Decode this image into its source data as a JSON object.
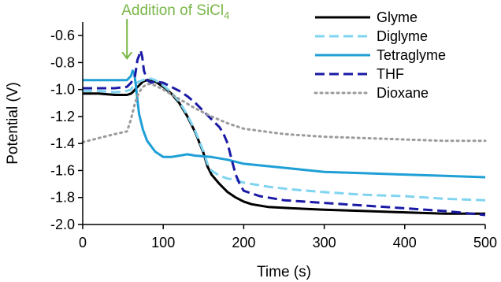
{
  "chart_data": {
    "type": "line",
    "xlabel": "Time (s)",
    "ylabel": "Potential (V)",
    "xlim": [
      0,
      500
    ],
    "ylim": [
      -2.0,
      -0.5
    ],
    "x_ticks": [
      "0",
      "100",
      "200",
      "300",
      "400",
      "500"
    ],
    "x_tick_values": [
      0,
      100,
      200,
      300,
      400,
      500
    ],
    "y_ticks": [
      "-0.6",
      "-0.8",
      "-1.0",
      "-1.2",
      "-1.4",
      "-1.6",
      "-1.8",
      "-2.0"
    ],
    "y_tick_values": [
      -0.6,
      -0.8,
      -1.0,
      -1.2,
      -1.4,
      -1.6,
      -1.8,
      -2.0
    ],
    "grid": false,
    "legend_position": "top-right",
    "annotation": {
      "text": "Addition of SiCl",
      "subscript": "4",
      "x": 55,
      "y_arrow_end": -0.77,
      "color": "#7ab648"
    },
    "series": [
      {
        "name": "Glyme",
        "color": "#000000",
        "dash": "solid",
        "x": [
          0,
          20,
          40,
          55,
          60,
          62,
          65,
          70,
          75,
          80,
          85,
          90,
          100,
          110,
          120,
          130,
          140,
          150,
          155,
          160,
          170,
          180,
          190,
          200,
          210,
          230,
          260,
          300,
          350,
          400,
          450,
          500
        ],
        "y": [
          -1.03,
          -1.03,
          -1.04,
          -1.04,
          -1.03,
          -1.02,
          -1.0,
          -0.97,
          -0.94,
          -0.93,
          -0.93,
          -0.94,
          -0.98,
          -1.03,
          -1.1,
          -1.2,
          -1.32,
          -1.47,
          -1.57,
          -1.63,
          -1.7,
          -1.76,
          -1.8,
          -1.83,
          -1.85,
          -1.87,
          -1.88,
          -1.89,
          -1.9,
          -1.91,
          -1.92,
          -1.92
        ]
      },
      {
        "name": "Diglyme",
        "color": "#7fd4f0",
        "dash": "dashed",
        "x": [
          0,
          20,
          40,
          55,
          60,
          62,
          65,
          70,
          75,
          80,
          85,
          90,
          100,
          110,
          120,
          130,
          140,
          150,
          155,
          160,
          170,
          180,
          190,
          200,
          230,
          260,
          300,
          350,
          400,
          450,
          500
        ],
        "y": [
          -1.01,
          -1.01,
          -1.02,
          -1.01,
          -1.0,
          -0.98,
          -0.96,
          -0.94,
          -0.93,
          -0.92,
          -0.92,
          -0.93,
          -0.97,
          -1.02,
          -1.09,
          -1.19,
          -1.31,
          -1.46,
          -1.55,
          -1.6,
          -1.64,
          -1.66,
          -1.67,
          -1.69,
          -1.72,
          -1.74,
          -1.76,
          -1.78,
          -1.79,
          -1.81,
          -1.82
        ]
      },
      {
        "name": "Tetraglyme",
        "color": "#1e9fd6",
        "dash": "solid",
        "x": [
          0,
          20,
          40,
          55,
          60,
          62,
          64,
          66,
          68,
          70,
          75,
          80,
          90,
          100,
          110,
          120,
          130,
          140,
          160,
          180,
          200,
          250,
          300,
          350,
          400,
          450,
          500
        ],
        "y": [
          -0.93,
          -0.93,
          -0.93,
          -0.93,
          -0.9,
          -0.86,
          -0.88,
          -0.97,
          -1.08,
          -1.18,
          -1.3,
          -1.38,
          -1.46,
          -1.5,
          -1.5,
          -1.49,
          -1.48,
          -1.49,
          -1.5,
          -1.52,
          -1.55,
          -1.58,
          -1.61,
          -1.62,
          -1.63,
          -1.64,
          -1.65
        ]
      },
      {
        "name": "THF",
        "color": "#1a1aa6",
        "dash": "dashed",
        "x": [
          0,
          20,
          40,
          55,
          60,
          65,
          68,
          70,
          72,
          74,
          76,
          80,
          85,
          90,
          100,
          110,
          120,
          130,
          140,
          150,
          160,
          170,
          175,
          180,
          185,
          190,
          195,
          200,
          220,
          250,
          300,
          350,
          400,
          450,
          500
        ],
        "y": [
          -0.99,
          -0.99,
          -0.99,
          -0.98,
          -0.95,
          -0.9,
          -0.78,
          -0.75,
          -0.71,
          -0.76,
          -0.86,
          -0.93,
          -0.95,
          -0.94,
          -0.95,
          -0.98,
          -1.01,
          -1.05,
          -1.1,
          -1.16,
          -1.22,
          -1.28,
          -1.33,
          -1.4,
          -1.52,
          -1.63,
          -1.7,
          -1.75,
          -1.79,
          -1.82,
          -1.84,
          -1.86,
          -1.88,
          -1.9,
          -1.93
        ]
      },
      {
        "name": "Dioxane",
        "color": "#9b9b9b",
        "dash": "dotted",
        "x": [
          0,
          20,
          40,
          55,
          60,
          65,
          70,
          75,
          80,
          85,
          90,
          100,
          120,
          140,
          160,
          180,
          200,
          250,
          300,
          350,
          400,
          450,
          500
        ],
        "y": [
          -1.39,
          -1.36,
          -1.33,
          -1.31,
          -1.22,
          -1.1,
          -1.02,
          -0.98,
          -0.96,
          -0.96,
          -0.97,
          -1.0,
          -1.07,
          -1.14,
          -1.2,
          -1.25,
          -1.29,
          -1.33,
          -1.35,
          -1.36,
          -1.37,
          -1.38,
          -1.38
        ]
      }
    ]
  }
}
